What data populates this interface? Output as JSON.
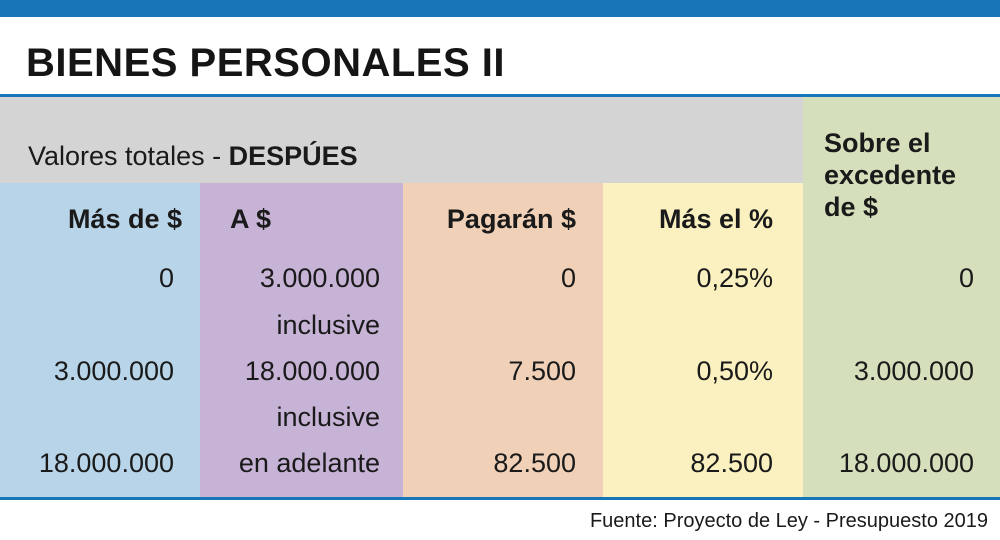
{
  "title": "BIENES PERSONALES II",
  "chart_data": {
    "type": "table",
    "title": "BIENES PERSONALES II",
    "subtitle_prefix": "Valores totales - ",
    "subtitle_emphasis": "DESPÚES",
    "columns": [
      "Más de $",
      "A $",
      "Pagarán $",
      "Más el %",
      "Sobre el excedente de $"
    ],
    "rows": [
      {
        "mas_de": "0",
        "a": "3.000.000",
        "a_note": "inclusive",
        "pagaran": "0",
        "mas_el": "0,25%",
        "sobre": "0"
      },
      {
        "mas_de": "3.000.000",
        "a": "18.000.000",
        "a_note": "inclusive",
        "pagaran": "7.500",
        "mas_el": "0,50%",
        "sobre": "3.000.000"
      },
      {
        "mas_de": "18.000.000",
        "a": "en adelante",
        "a_note": "",
        "pagaran": "82.500",
        "mas_el": "82.500",
        "sobre": "18.000.000"
      }
    ],
    "source": "Fuente: Proyecto de Ley - Presupuesto 2019"
  },
  "colors": {
    "accent": "#1776b7",
    "header_band": "#d4d4d4",
    "col_mas_de": "#b8d4e8",
    "col_a": "#c7b3d6",
    "col_pagaran": "#f0d1b7",
    "col_mas_el": "#fbf1c0",
    "col_sobre": "#d6dfbb"
  }
}
